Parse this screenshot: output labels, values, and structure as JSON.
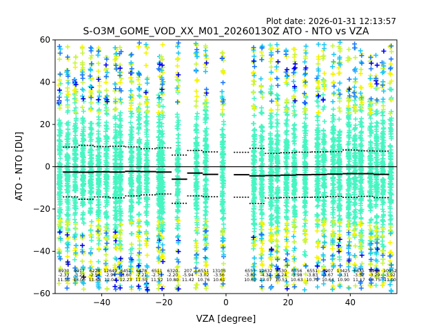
{
  "plot_date": "Plot date: 2026-01-31 12:13:57",
  "chart_data": {
    "type": "scatter",
    "title": "S-O3M_GOME_VOD_XX_M01_20260130Z ATO - NTO vs VZA",
    "xlabel": "VZA [degree]",
    "ylabel": "ATO - NTO [DU]",
    "xlim": [
      -55,
      55
    ],
    "ylim": [
      -60,
      60
    ],
    "xticks": [
      -40,
      -20,
      0,
      20,
      40
    ],
    "yticks": [
      -60,
      -40,
      -20,
      0,
      20,
      40,
      60
    ],
    "zero_line": 0,
    "columns_vza": [
      -53.5,
      -51.0,
      -48.5,
      -46.0,
      -43.5,
      -41.0,
      -38.5,
      -35.5,
      -34.0,
      -30.5,
      -28.0,
      -25.5,
      -21.5,
      -20.5,
      -15.5,
      -9.5,
      -6.5,
      -1.0,
      9.0,
      11.5,
      14.5,
      16.5,
      19.5,
      22.0,
      25.5,
      29.5,
      31.5,
      34.5,
      36.5,
      39.5,
      41.5,
      43.5,
      46.5,
      48.5,
      50.5,
      53.0
    ],
    "bins": [
      {
        "x": -50,
        "mean": -2.5,
        "upper": 9.3,
        "lower": -14.3
      },
      {
        "x": -45,
        "mean": -2.6,
        "upper": 10.1,
        "lower": -15.4
      },
      {
        "x": -40,
        "mean": -2.4,
        "upper": 9.5,
        "lower": -14.3
      },
      {
        "x": -35,
        "mean": -2.5,
        "upper": 9.7,
        "lower": -14.7
      },
      {
        "x": -30,
        "mean": -2.2,
        "upper": 9.4,
        "lower": -13.8
      },
      {
        "x": -25,
        "mean": -2.3,
        "upper": 8.5,
        "lower": -13.3
      },
      {
        "x": -20,
        "mean": -2.5,
        "upper": 8.9,
        "lower": -12.9
      },
      {
        "x": -15,
        "mean": -5.9,
        "upper": 5.5,
        "lower": -17.3
      },
      {
        "x": -10,
        "mean": -3.0,
        "upper": 7.7,
        "lower": -13.8
      },
      {
        "x": -5,
        "mean": -3.6,
        "upper": 7.0,
        "lower": -14.2
      },
      {
        "x": 5,
        "mean": -3.8,
        "upper": 6.8,
        "lower": -14.4
      },
      {
        "x": 10,
        "mean": -4.3,
        "upper": 8.7,
        "lower": -17.4
      },
      {
        "x": 15,
        "mean": -4.2,
        "upper": 6.3,
        "lower": -14.8
      },
      {
        "x": 20,
        "mean": -4.0,
        "upper": 6.6,
        "lower": -14.6
      },
      {
        "x": 25,
        "mean": -3.8,
        "upper": 6.9,
        "lower": -14.5
      },
      {
        "x": 30,
        "mean": -3.7,
        "upper": 7.0,
        "lower": -14.4
      },
      {
        "x": 35,
        "mean": -3.5,
        "upper": 7.1,
        "lower": -14.1
      },
      {
        "x": 40,
        "mean": -3.3,
        "upper": 7.9,
        "lower": -14.5
      },
      {
        "x": 45,
        "mean": -3.3,
        "upper": 7.5,
        "lower": -14.0
      },
      {
        "x": 50,
        "mean": -3.6,
        "upper": 7.4,
        "lower": -14.6
      }
    ],
    "annotations": [
      {
        "x": -50,
        "n": "8930",
        "mean": "-2.33",
        "std": "11.55"
      },
      {
        "x": -45,
        "n": "9917",
        "mean": "-3.22",
        "std": "13.00"
      },
      {
        "x": -40,
        "n": "6228",
        "mean": "-2.54",
        "std": "11.68"
      },
      {
        "x": -35,
        "n": "12649",
        "mean": "-2.94",
        "std": "12.04"
      },
      {
        "x": -30,
        "n": "6451",
        "mean": "-2.60",
        "std": "12.23"
      },
      {
        "x": -25,
        "n": "6478",
        "mean": "-2.21",
        "std": "11.59"
      },
      {
        "x": -20,
        "n": "6511",
        "mean": "-2.73",
        "std": "11.52"
      },
      {
        "x": -15,
        "n": "6320",
        "mean": "-2.20",
        "std": "10.80"
      },
      {
        "x": -10,
        "n": "207",
        "mean": "-5.94",
        "std": "11.42"
      },
      {
        "x": -5,
        "n": "6551",
        "mean": "-3.02",
        "std": "10.76"
      },
      {
        "x": 0,
        "n": "13105",
        "mean": "-3.56",
        "std": "10.61"
      },
      {
        "x": 10,
        "n": "6553",
        "mean": "-3.82",
        "std": "10.61"
      },
      {
        "x": 15,
        "n": "12632",
        "mean": "-4.31",
        "std": "13.07"
      },
      {
        "x": 20,
        "n": "6530",
        "mean": "-4.24",
        "std": "10.51"
      },
      {
        "x": 25,
        "n": "6556",
        "mean": "-3.98",
        "std": "10.63"
      },
      {
        "x": 30,
        "n": "6551",
        "mean": "-3.83",
        "std": "10.70"
      },
      {
        "x": 35,
        "n": "6907",
        "mean": "-3.67",
        "std": "10.64"
      },
      {
        "x": 40,
        "n": "13425",
        "mean": "-3.31",
        "std": "10.90"
      },
      {
        "x": 45,
        "n": "6835",
        "mean": "-3.32",
        "std": "11.17"
      },
      {
        "x": 50,
        "n": "8969",
        "mean": "-3.29",
        "std": "10.75"
      },
      {
        "x": 55,
        "n": "10952",
        "mean": "-3.92",
        "std": "11.00"
      }
    ]
  },
  "colors": {
    "core": "#46f5c2",
    "mid_yellow": "#c8f53c",
    "yellow": "#f5f500",
    "cyan": "#1ec8f5",
    "azure": "#1e78ff",
    "blue": "#0000f0",
    "line": "#000000"
  }
}
